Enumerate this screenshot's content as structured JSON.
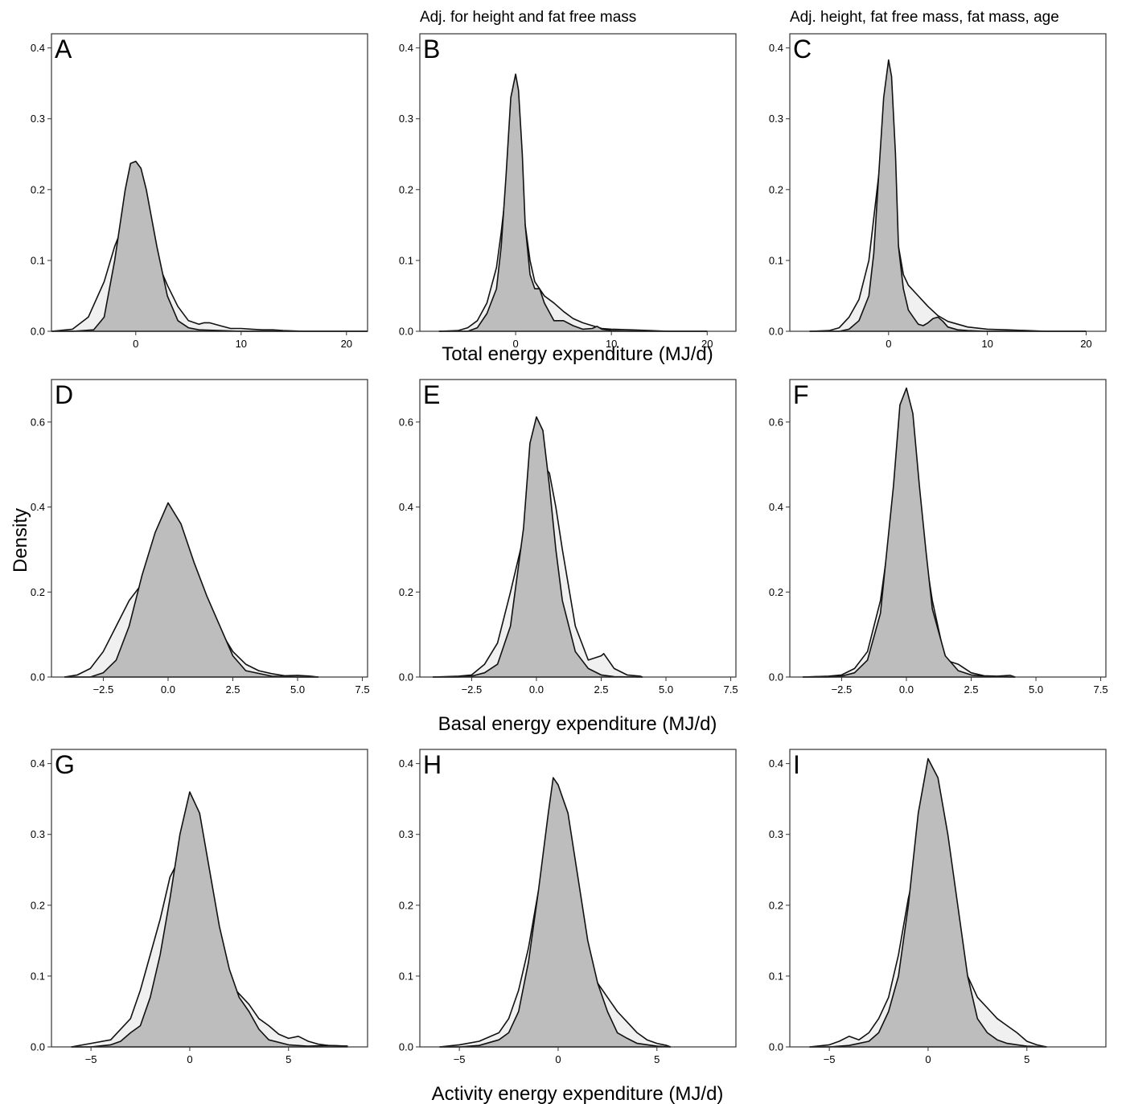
{
  "figure": {
    "column_titles": [
      "",
      "Adj. for height and fat free mass",
      "Adj. height, fat free mass, fat mass, age"
    ],
    "row_xlabels": [
      "Total energy expenditure (MJ/d)",
      "Basal energy expenditure (MJ/d)",
      "Activity energy expenditure (MJ/d)"
    ],
    "ylabel": "Density",
    "colors": {
      "dark_fill": "#bdbdbd",
      "light_fill": "#f0f0f0",
      "line": "#111111",
      "frame": "#333333"
    }
  },
  "chart_data": [
    {
      "type": "area",
      "panel": "A",
      "row": 0,
      "col": 0,
      "xlim": [
        -8,
        22
      ],
      "ylim": [
        0,
        0.42
      ],
      "xticks": [
        0,
        10,
        20
      ],
      "yticks": [
        0.0,
        0.1,
        0.2,
        0.3,
        0.4
      ],
      "series": [
        {
          "fill": "light",
          "x": [
            -8,
            -6,
            -4.5,
            -3,
            -2,
            -1,
            0,
            1,
            2,
            3,
            4,
            5,
            6,
            6.5,
            7,
            8,
            9,
            10,
            11,
            12,
            13,
            14,
            16,
            18,
            20,
            22
          ],
          "y": [
            0,
            0.003,
            0.02,
            0.07,
            0.12,
            0.157,
            0.15,
            0.135,
            0.1,
            0.065,
            0.035,
            0.015,
            0.01,
            0.012,
            0.012,
            0.008,
            0.004,
            0.004,
            0.003,
            0.002,
            0.002,
            0.001,
            0,
            0,
            0,
            0
          ]
        },
        {
          "fill": "dark",
          "x": [
            -8,
            -6,
            -4,
            -3,
            -2,
            -1,
            -0.5,
            0,
            0.5,
            1,
            2,
            3,
            4,
            5,
            6,
            8,
            10,
            14,
            22
          ],
          "y": [
            0,
            0,
            0.002,
            0.02,
            0.1,
            0.2,
            0.237,
            0.24,
            0.23,
            0.2,
            0.12,
            0.05,
            0.015,
            0.005,
            0.002,
            0.001,
            0,
            0,
            0
          ]
        }
      ]
    },
    {
      "type": "area",
      "panel": "B",
      "row": 0,
      "col": 1,
      "xlim": [
        -10,
        23
      ],
      "ylim": [
        0,
        0.42
      ],
      "xticks": [
        0,
        10,
        20
      ],
      "yticks": [
        0.0,
        0.1,
        0.2,
        0.3,
        0.4
      ],
      "series": [
        {
          "fill": "light",
          "x": [
            -8,
            -6,
            -5,
            -4,
            -3,
            -2,
            -1.5,
            -1,
            -0.5,
            0,
            0.5,
            1,
            1.5,
            2,
            3,
            4,
            5,
            6,
            7,
            8,
            9,
            10,
            12,
            14,
            16,
            20
          ],
          "y": [
            0,
            0.001,
            0.005,
            0.015,
            0.04,
            0.09,
            0.14,
            0.2,
            0.243,
            0.235,
            0.2,
            0.15,
            0.1,
            0.07,
            0.05,
            0.04,
            0.028,
            0.018,
            0.012,
            0.008,
            0.004,
            0.003,
            0.002,
            0.001,
            0,
            0
          ]
        },
        {
          "fill": "dark",
          "x": [
            -8,
            -5,
            -4,
            -3,
            -2,
            -1.5,
            -1,
            -0.5,
            0,
            0.3,
            0.7,
            1,
            1.5,
            2,
            2.5,
            3,
            4,
            5,
            6,
            7,
            8,
            8.5,
            9,
            10,
            12,
            20
          ],
          "y": [
            0,
            0,
            0.005,
            0.025,
            0.06,
            0.12,
            0.22,
            0.33,
            0.363,
            0.34,
            0.25,
            0.15,
            0.08,
            0.06,
            0.06,
            0.04,
            0.015,
            0.015,
            0.008,
            0.003,
            0.004,
            0.007,
            0.003,
            0.001,
            0,
            0
          ]
        }
      ]
    },
    {
      "type": "area",
      "panel": "C",
      "row": 0,
      "col": 2,
      "xlim": [
        -10,
        22
      ],
      "ylim": [
        0,
        0.42
      ],
      "xticks": [
        0,
        10,
        20
      ],
      "yticks": [
        0.0,
        0.1,
        0.2,
        0.3,
        0.4
      ],
      "series": [
        {
          "fill": "light",
          "x": [
            -8,
            -6,
            -5,
            -4,
            -3,
            -2,
            -1.5,
            -1,
            -0.5,
            0,
            0.5,
            1,
            1.5,
            2,
            3,
            4,
            5,
            6,
            7,
            8,
            10,
            12,
            14,
            16,
            20
          ],
          "y": [
            0,
            0.001,
            0.005,
            0.02,
            0.045,
            0.1,
            0.16,
            0.22,
            0.252,
            0.24,
            0.19,
            0.12,
            0.08,
            0.065,
            0.05,
            0.035,
            0.022,
            0.014,
            0.01,
            0.006,
            0.003,
            0.002,
            0.001,
            0,
            0
          ]
        },
        {
          "fill": "dark",
          "x": [
            -8,
            -5,
            -4,
            -3,
            -2,
            -1.5,
            -1,
            -0.5,
            0,
            0.3,
            0.7,
            1,
            1.5,
            2,
            2.5,
            3,
            3.5,
            4,
            4.5,
            5,
            5.5,
            6,
            7,
            8,
            10,
            20
          ],
          "y": [
            0,
            0,
            0.003,
            0.015,
            0.05,
            0.11,
            0.22,
            0.33,
            0.383,
            0.36,
            0.25,
            0.12,
            0.06,
            0.03,
            0.02,
            0.01,
            0.008,
            0.012,
            0.018,
            0.02,
            0.014,
            0.006,
            0.002,
            0.001,
            0,
            0
          ]
        }
      ]
    },
    {
      "type": "area",
      "panel": "D",
      "row": 1,
      "col": 0,
      "xlim": [
        -4.5,
        7.7
      ],
      "ylim": [
        0,
        0.7
      ],
      "xticks": [
        -2.5,
        0.0,
        2.5,
        5.0,
        7.5
      ],
      "yticks": [
        0.0,
        0.2,
        0.4,
        0.6
      ],
      "series": [
        {
          "fill": "light",
          "x": [
            -4,
            -3.5,
            -3,
            -2.5,
            -2,
            -1.5,
            -1,
            -0.5,
            0,
            0.25,
            0.5,
            1,
            1.5,
            2,
            2.5,
            3,
            3.5,
            4,
            4.5,
            5,
            5.5,
            5.8
          ],
          "y": [
            0,
            0.005,
            0.02,
            0.06,
            0.12,
            0.18,
            0.22,
            0.27,
            0.315,
            0.333,
            0.32,
            0.26,
            0.18,
            0.11,
            0.06,
            0.03,
            0.015,
            0.008,
            0.003,
            0.004,
            0.002,
            0
          ]
        },
        {
          "fill": "dark",
          "x": [
            -4,
            -3,
            -2.5,
            -2,
            -1.5,
            -1,
            -0.5,
            0,
            0.5,
            1,
            1.5,
            2,
            2.5,
            3,
            4,
            5,
            5.8
          ],
          "y": [
            0,
            0,
            0.01,
            0.04,
            0.12,
            0.24,
            0.34,
            0.41,
            0.36,
            0.27,
            0.19,
            0.12,
            0.05,
            0.015,
            0.002,
            0,
            0
          ]
        }
      ]
    },
    {
      "type": "area",
      "panel": "E",
      "row": 1,
      "col": 1,
      "xlim": [
        -4.5,
        7.7
      ],
      "ylim": [
        0,
        0.7
      ],
      "xticks": [
        -2.5,
        0.0,
        2.5,
        5.0,
        7.5
      ],
      "yticks": [
        0.0,
        0.2,
        0.4,
        0.6
      ],
      "series": [
        {
          "fill": "light",
          "x": [
            -4,
            -3,
            -2.5,
            -2,
            -1.5,
            -1,
            -0.5,
            -0.25,
            0,
            0.25,
            0.5,
            0.75,
            1,
            1.5,
            2,
            2.5,
            2.6,
            3,
            3.5,
            4,
            4.1
          ],
          "y": [
            0,
            0.002,
            0.005,
            0.03,
            0.08,
            0.2,
            0.33,
            0.43,
            0.523,
            0.5,
            0.48,
            0.4,
            0.3,
            0.12,
            0.04,
            0.05,
            0.055,
            0.02,
            0.005,
            0.002,
            0
          ]
        },
        {
          "fill": "dark",
          "x": [
            -4,
            -3,
            -2.5,
            -2,
            -1.5,
            -1,
            -0.5,
            -0.25,
            0,
            0.25,
            0.5,
            0.75,
            1,
            1.5,
            2,
            2.5,
            3,
            4,
            4.1
          ],
          "y": [
            0,
            0,
            0.002,
            0.01,
            0.03,
            0.12,
            0.35,
            0.55,
            0.612,
            0.58,
            0.45,
            0.3,
            0.18,
            0.06,
            0.02,
            0.005,
            0.001,
            0,
            0
          ]
        }
      ]
    },
    {
      "type": "area",
      "panel": "F",
      "row": 1,
      "col": 2,
      "xlim": [
        -4.5,
        7.7
      ],
      "ylim": [
        0,
        0.7
      ],
      "xticks": [
        -2.5,
        0.0,
        2.5,
        5.0,
        7.5
      ],
      "yticks": [
        0.0,
        0.2,
        0.4,
        0.6
      ],
      "series": [
        {
          "fill": "light",
          "x": [
            -4,
            -3,
            -2.5,
            -2,
            -1.5,
            -1,
            -0.5,
            -0.25,
            0,
            0.25,
            0.5,
            0.75,
            1,
            1.5,
            2,
            2.5,
            3,
            3.5,
            4,
            4.2
          ],
          "y": [
            0,
            0.002,
            0.005,
            0.02,
            0.06,
            0.18,
            0.4,
            0.55,
            0.61,
            0.55,
            0.4,
            0.28,
            0.18,
            0.04,
            0.03,
            0.01,
            0.003,
            0.002,
            0.004,
            0
          ]
        },
        {
          "fill": "dark",
          "x": [
            -4,
            -3,
            -2.5,
            -2,
            -1.5,
            -1,
            -0.5,
            -0.25,
            0,
            0.25,
            0.5,
            0.75,
            1,
            1.5,
            2,
            2.5,
            3,
            4,
            4.2
          ],
          "y": [
            0,
            0,
            0.002,
            0.01,
            0.04,
            0.15,
            0.45,
            0.64,
            0.68,
            0.62,
            0.45,
            0.3,
            0.16,
            0.05,
            0.015,
            0.005,
            0.002,
            0,
            0
          ]
        }
      ]
    },
    {
      "type": "area",
      "panel": "G",
      "row": 2,
      "col": 0,
      "xlim": [
        -7,
        9
      ],
      "ylim": [
        0,
        0.42
      ],
      "xticks": [
        -5,
        0,
        5
      ],
      "yticks": [
        0.0,
        0.1,
        0.2,
        0.3,
        0.4
      ],
      "series": [
        {
          "fill": "light",
          "x": [
            -6,
            -5,
            -4,
            -3,
            -2.5,
            -2,
            -1.5,
            -1,
            -0.5,
            0,
            0.5,
            1,
            1.5,
            2,
            2.5,
            3,
            3.5,
            4,
            4.5,
            5,
            5.5,
            6,
            6.5,
            7,
            8
          ],
          "y": [
            0,
            0.005,
            0.01,
            0.04,
            0.08,
            0.13,
            0.18,
            0.24,
            0.267,
            0.255,
            0.2,
            0.13,
            0.1,
            0.09,
            0.075,
            0.06,
            0.04,
            0.03,
            0.018,
            0.012,
            0.015,
            0.008,
            0.004,
            0.002,
            0.001
          ]
        },
        {
          "fill": "dark",
          "x": [
            -6,
            -5,
            -4,
            -3.5,
            -3,
            -2.5,
            -2,
            -1.5,
            -1,
            -0.5,
            0,
            0.5,
            1,
            1.5,
            2,
            2.5,
            3,
            3.5,
            4,
            5,
            6,
            7,
            8
          ],
          "y": [
            0,
            0,
            0.003,
            0.008,
            0.02,
            0.03,
            0.07,
            0.13,
            0.21,
            0.3,
            0.36,
            0.33,
            0.25,
            0.17,
            0.11,
            0.07,
            0.05,
            0.025,
            0.01,
            0.003,
            0.001,
            0.002,
            0.001
          ]
        }
      ]
    },
    {
      "type": "area",
      "panel": "H",
      "row": 2,
      "col": 1,
      "xlim": [
        -7,
        9
      ],
      "ylim": [
        0,
        0.42
      ],
      "xticks": [
        -5,
        0,
        5
      ],
      "yticks": [
        0.0,
        0.1,
        0.2,
        0.3,
        0.4
      ],
      "series": [
        {
          "fill": "light",
          "x": [
            -6,
            -5,
            -4,
            -3,
            -2.5,
            -2,
            -1.5,
            -1,
            -0.5,
            0,
            0.5,
            1,
            1.5,
            2,
            2.5,
            3,
            3.5,
            4,
            4.5,
            5,
            5.5,
            5.7
          ],
          "y": [
            0,
            0.003,
            0.008,
            0.02,
            0.04,
            0.08,
            0.14,
            0.22,
            0.27,
            0.288,
            0.25,
            0.16,
            0.12,
            0.09,
            0.07,
            0.05,
            0.035,
            0.02,
            0.01,
            0.005,
            0.002,
            0
          ]
        },
        {
          "fill": "dark",
          "x": [
            -6,
            -5,
            -4,
            -3,
            -2.5,
            -2,
            -1.5,
            -1,
            -0.5,
            -0.25,
            0,
            0.5,
            1,
            1.5,
            2,
            2.5,
            3,
            3.5,
            4,
            5,
            5.7
          ],
          "y": [
            0,
            0,
            0.002,
            0.01,
            0.02,
            0.05,
            0.12,
            0.22,
            0.33,
            0.38,
            0.37,
            0.33,
            0.24,
            0.15,
            0.09,
            0.05,
            0.02,
            0.012,
            0.005,
            0.001,
            0
          ]
        }
      ]
    },
    {
      "type": "area",
      "panel": "I",
      "row": 2,
      "col": 2,
      "xlim": [
        -7,
        9
      ],
      "ylim": [
        0,
        0.42
      ],
      "xticks": [
        -5,
        0,
        5
      ],
      "yticks": [
        0.0,
        0.1,
        0.2,
        0.3,
        0.4
      ],
      "series": [
        {
          "fill": "light",
          "x": [
            -6,
            -5,
            -4.5,
            -4,
            -3.5,
            -3,
            -2.5,
            -2,
            -1.5,
            -1,
            -0.5,
            0,
            0.5,
            1,
            1.5,
            2,
            2.5,
            3,
            3.5,
            4,
            4.5,
            5,
            5.5,
            6
          ],
          "y": [
            0,
            0.003,
            0.008,
            0.015,
            0.01,
            0.02,
            0.04,
            0.07,
            0.13,
            0.21,
            0.27,
            0.307,
            0.26,
            0.16,
            0.12,
            0.1,
            0.07,
            0.055,
            0.04,
            0.03,
            0.02,
            0.008,
            0.003,
            0
          ]
        },
        {
          "fill": "dark",
          "x": [
            -6,
            -5,
            -4,
            -3,
            -2.5,
            -2,
            -1.5,
            -1,
            -0.5,
            0,
            0.5,
            1,
            1.5,
            2,
            2.5,
            3,
            3.5,
            4,
            5,
            6
          ],
          "y": [
            0,
            0,
            0.002,
            0.008,
            0.02,
            0.05,
            0.1,
            0.2,
            0.33,
            0.407,
            0.38,
            0.3,
            0.2,
            0.1,
            0.04,
            0.02,
            0.01,
            0.005,
            0.001,
            0
          ]
        }
      ]
    }
  ]
}
